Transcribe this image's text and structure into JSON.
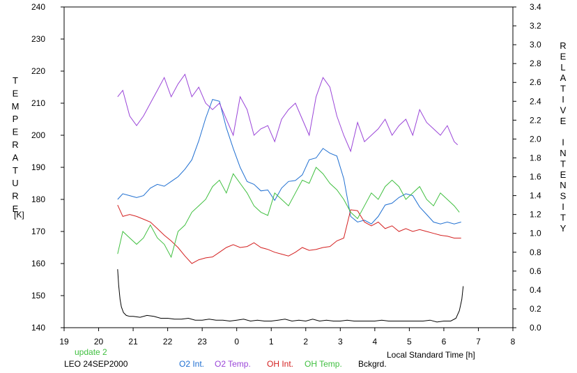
{
  "chart_data": {
    "type": "line",
    "left_axis": {
      "label": "TEMPERATURE",
      "unit": "[K]",
      "range": [
        140,
        240
      ],
      "ticks": [
        140,
        150,
        160,
        170,
        180,
        190,
        200,
        210,
        220,
        230,
        240
      ]
    },
    "right_axis": {
      "label": "RELATIVE INTENSITY",
      "range": [
        0.0,
        3.4
      ],
      "ticks": [
        "0.0",
        "0.2",
        "0.4",
        "0.6",
        "0.8",
        "1.0",
        "1.2",
        "1.4",
        "1.6",
        "1.8",
        "2.0",
        "2.2",
        "2.4",
        "2.6",
        "2.8",
        "3.0",
        "3.2",
        "3.4"
      ]
    },
    "x_axis": {
      "label": "Local Standard Time [h]",
      "tick_labels": [
        "19",
        "20",
        "21",
        "22",
        "23",
        "0",
        "1",
        "2",
        "3",
        "4",
        "5",
        "6",
        "7",
        "8"
      ],
      "range_hours": [
        19,
        32
      ]
    },
    "update_note": "update 2",
    "caption": "LEO 24SEP2000",
    "grid": false,
    "legend_position": "bottom",
    "series": [
      {
        "name": "O2 Int.",
        "color": "#1f6fd1",
        "axis": "right",
        "x": [
          20.55,
          20.7,
          20.9,
          21.1,
          21.3,
          21.5,
          21.7,
          21.9,
          22.1,
          22.3,
          22.5,
          22.7,
          22.9,
          23.1,
          23.3,
          23.5,
          23.7,
          23.9,
          24.1,
          24.3,
          24.5,
          24.7,
          24.9,
          25.1,
          25.3,
          25.5,
          25.7,
          25.9,
          26.1,
          26.3,
          26.5,
          26.7,
          26.9,
          27.1,
          27.3,
          27.5,
          27.7,
          27.9,
          28.1,
          28.3,
          28.5,
          28.7,
          28.9,
          29.1,
          29.3,
          29.5,
          29.7,
          29.9,
          30.1,
          30.3,
          30.5
        ],
        "y": [
          1.36,
          1.42,
          1.4,
          1.38,
          1.4,
          1.48,
          1.52,
          1.5,
          1.55,
          1.6,
          1.68,
          1.78,
          1.98,
          2.22,
          2.42,
          2.4,
          2.12,
          1.9,
          1.7,
          1.55,
          1.52,
          1.45,
          1.46,
          1.35,
          1.48,
          1.55,
          1.56,
          1.62,
          1.78,
          1.8,
          1.9,
          1.85,
          1.82,
          1.58,
          1.18,
          1.12,
          1.14,
          1.1,
          1.18,
          1.3,
          1.32,
          1.38,
          1.42,
          1.4,
          1.28,
          1.2,
          1.12,
          1.1,
          1.12,
          1.1,
          1.12
        ]
      },
      {
        "name": "O2 Temp.",
        "color": "#9a45d8",
        "axis": "left",
        "x": [
          20.55,
          20.7,
          20.9,
          21.1,
          21.3,
          21.5,
          21.7,
          21.9,
          22.1,
          22.3,
          22.5,
          22.7,
          22.9,
          23.1,
          23.3,
          23.5,
          23.7,
          23.9,
          24.1,
          24.3,
          24.5,
          24.7,
          24.9,
          25.1,
          25.3,
          25.5,
          25.7,
          25.9,
          26.1,
          26.3,
          26.5,
          26.7,
          26.9,
          27.1,
          27.3,
          27.5,
          27.7,
          27.9,
          28.1,
          28.3,
          28.5,
          28.7,
          28.9,
          29.1,
          29.3,
          29.5,
          29.7,
          29.9,
          30.1,
          30.3,
          30.4
        ],
        "y": [
          212,
          214,
          206,
          203,
          206,
          210,
          214,
          218,
          212,
          216,
          219,
          212,
          215,
          210,
          208,
          210,
          205,
          200,
          212,
          208,
          200,
          202,
          203,
          198,
          205,
          208,
          210,
          205,
          200,
          212,
          218,
          215,
          206,
          200,
          195,
          204,
          198,
          200,
          202,
          205,
          200,
          203,
          205,
          200,
          208,
          204,
          202,
          200,
          203,
          198,
          197
        ]
      },
      {
        "name": "OH Int.",
        "color": "#d42020",
        "axis": "right",
        "x": [
          20.55,
          20.7,
          20.9,
          21.1,
          21.3,
          21.5,
          21.7,
          21.9,
          22.1,
          22.3,
          22.5,
          22.7,
          22.9,
          23.1,
          23.3,
          23.5,
          23.7,
          23.9,
          24.1,
          24.3,
          24.5,
          24.7,
          24.9,
          25.1,
          25.3,
          25.5,
          25.7,
          25.9,
          26.1,
          26.3,
          26.5,
          26.7,
          26.9,
          27.1,
          27.3,
          27.5,
          27.7,
          27.9,
          28.1,
          28.3,
          28.5,
          28.7,
          28.9,
          29.1,
          29.3,
          29.5,
          29.7,
          29.9,
          30.1,
          30.3,
          30.5
        ],
        "y": [
          1.3,
          1.18,
          1.2,
          1.18,
          1.15,
          1.12,
          1.05,
          0.98,
          0.92,
          0.85,
          0.76,
          0.68,
          0.72,
          0.74,
          0.75,
          0.8,
          0.85,
          0.88,
          0.85,
          0.86,
          0.9,
          0.85,
          0.83,
          0.8,
          0.78,
          0.76,
          0.8,
          0.85,
          0.82,
          0.83,
          0.85,
          0.86,
          0.92,
          0.95,
          1.25,
          1.24,
          1.12,
          1.08,
          1.12,
          1.05,
          1.08,
          1.02,
          1.05,
          1.02,
          1.04,
          1.02,
          1.0,
          0.98,
          0.97,
          0.95,
          0.95
        ]
      },
      {
        "name": "OH Temp.",
        "color": "#3fbf3f",
        "axis": "left",
        "x": [
          20.55,
          20.7,
          20.9,
          21.1,
          21.3,
          21.5,
          21.7,
          21.9,
          22.1,
          22.3,
          22.5,
          22.7,
          22.9,
          23.1,
          23.3,
          23.5,
          23.7,
          23.9,
          24.1,
          24.3,
          24.5,
          24.7,
          24.9,
          25.1,
          25.3,
          25.5,
          25.7,
          25.9,
          26.1,
          26.3,
          26.5,
          26.7,
          26.9,
          27.1,
          27.3,
          27.5,
          27.7,
          27.9,
          28.1,
          28.3,
          28.5,
          28.7,
          28.9,
          29.1,
          29.3,
          29.5,
          29.7,
          29.9,
          30.1,
          30.3,
          30.45
        ],
        "y": [
          163,
          170,
          168,
          166,
          168,
          172,
          168,
          166,
          162,
          170,
          172,
          176,
          178,
          180,
          184,
          186,
          182,
          188,
          185,
          182,
          178,
          176,
          175,
          182,
          180,
          178,
          182,
          186,
          185,
          190,
          188,
          185,
          183,
          180,
          176,
          174,
          178,
          182,
          180,
          184,
          186,
          184,
          180,
          182,
          184,
          180,
          178,
          182,
          180,
          178,
          176
        ]
      },
      {
        "name": "Bckgrd.",
        "color": "#000000",
        "axis": "right",
        "x": [
          20.55,
          20.58,
          20.62,
          20.66,
          20.72,
          20.8,
          20.9,
          21.0,
          21.2,
          21.4,
          21.6,
          21.8,
          22.0,
          22.2,
          22.4,
          22.6,
          22.8,
          23.0,
          23.2,
          23.4,
          23.6,
          23.8,
          24.0,
          24.2,
          24.4,
          24.6,
          24.8,
          25.0,
          25.2,
          25.4,
          25.6,
          25.8,
          26.0,
          26.2,
          26.4,
          26.6,
          26.8,
          27.0,
          27.2,
          27.4,
          27.6,
          27.8,
          28.0,
          28.2,
          28.4,
          28.6,
          28.8,
          29.0,
          29.2,
          29.4,
          29.6,
          29.8,
          30.0,
          30.2,
          30.35,
          30.45,
          30.52,
          30.56
        ],
        "y": [
          0.62,
          0.45,
          0.3,
          0.22,
          0.16,
          0.13,
          0.12,
          0.12,
          0.11,
          0.13,
          0.12,
          0.1,
          0.1,
          0.09,
          0.09,
          0.1,
          0.08,
          0.08,
          0.09,
          0.08,
          0.08,
          0.07,
          0.08,
          0.09,
          0.07,
          0.08,
          0.07,
          0.07,
          0.08,
          0.09,
          0.07,
          0.08,
          0.07,
          0.09,
          0.07,
          0.08,
          0.07,
          0.07,
          0.08,
          0.07,
          0.07,
          0.07,
          0.07,
          0.08,
          0.07,
          0.07,
          0.07,
          0.07,
          0.07,
          0.07,
          0.08,
          0.06,
          0.07,
          0.07,
          0.1,
          0.18,
          0.3,
          0.44
        ]
      }
    ]
  }
}
